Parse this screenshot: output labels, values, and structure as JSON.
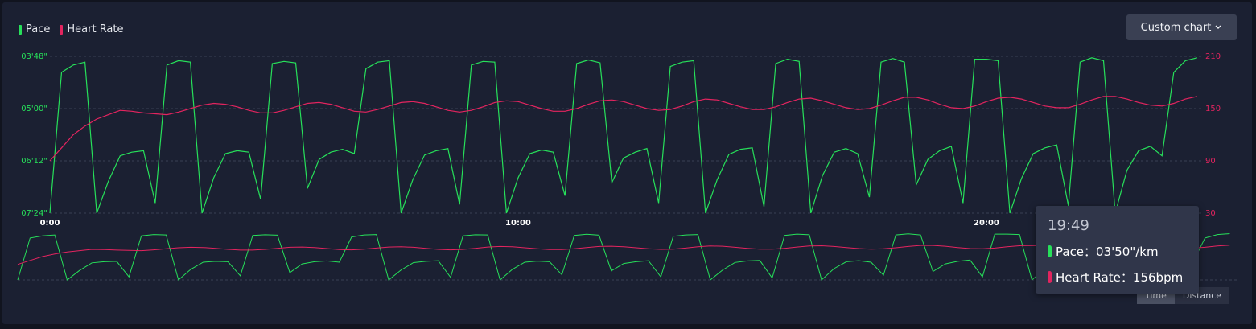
{
  "chart_data": {
    "type": "line",
    "x": [
      0,
      0.25,
      0.5,
      0.75,
      1,
      1.25,
      1.5,
      1.75,
      2,
      2.25,
      2.5,
      2.75,
      3,
      3.25,
      3.5,
      3.75,
      4,
      4.25,
      4.5,
      4.75,
      5,
      5.25,
      5.5,
      5.75,
      6,
      6.25,
      6.5,
      6.75,
      7,
      7.25,
      7.5,
      7.75,
      8,
      8.25,
      8.5,
      8.75,
      9,
      9.25,
      9.5,
      9.75,
      10,
      10.25,
      10.5,
      10.75,
      11,
      11.25,
      11.5,
      11.75,
      12,
      12.25,
      12.5,
      12.75,
      13,
      13.25,
      13.5,
      13.75,
      14,
      14.25,
      14.5,
      14.75,
      15,
      15.25,
      15.5,
      15.75,
      16,
      16.25,
      16.5,
      16.75,
      17,
      17.25,
      17.5,
      17.75,
      18,
      18.25,
      18.5,
      18.75,
      19,
      19.25,
      19.5,
      19.75,
      20,
      20.25,
      20.5,
      20.75,
      21,
      21.25,
      21.5,
      21.75,
      22,
      22.25,
      22.5,
      22.75,
      23,
      23.25,
      23.5,
      23.75,
      24,
      24.25,
      24.5
    ],
    "xlim": [
      0,
      24.64
    ],
    "xticks": [
      {
        "value": 0,
        "label": "0:00"
      },
      {
        "value": 10,
        "label": "10:00"
      },
      {
        "value": 20,
        "label": "20:00"
      }
    ],
    "ylim": [
      444,
      228
    ],
    "yticks": [
      {
        "value": 228,
        "label": "03'48\""
      },
      {
        "value": 300,
        "label": "05'00\""
      },
      {
        "value": 372,
        "label": "06'12\""
      },
      {
        "value": 444,
        "label": "07'24\""
      }
    ],
    "y2lim": [
      30,
      210
    ],
    "y2ticks": [
      30,
      90,
      150,
      210
    ],
    "grid": true,
    "series": [
      {
        "name": "Pace",
        "color": "#27e05a",
        "values": [
          444,
          250,
          240,
          236,
          444,
          400,
          365,
          360,
          358,
          430,
          240,
          234,
          236,
          444,
          395,
          362,
          358,
          360,
          425,
          238,
          235,
          237,
          410,
          370,
          360,
          356,
          362,
          245,
          236,
          234,
          444,
          398,
          364,
          358,
          355,
          432,
          240,
          235,
          236,
          444,
          395,
          362,
          357,
          360,
          420,
          238,
          233,
          237,
          402,
          368,
          360,
          355,
          430,
          242,
          236,
          234,
          444,
          398,
          363,
          356,
          354,
          435,
          238,
          232,
          235,
          444,
          392,
          360,
          355,
          362,
          422,
          236,
          231,
          236,
          405,
          370,
          358,
          352,
          430,
          232,
          232,
          234,
          444,
          396,
          362,
          354,
          350,
          434,
          236,
          230,
          234,
          444,
          385,
          358,
          352,
          365,
          250,
          234,
          230
        ]
      },
      {
        "name": "Heart Rate",
        "color": "#e3245f",
        "axis": "y2",
        "values": [
          90,
          105,
          120,
          130,
          138,
          143,
          148,
          147,
          145,
          144,
          143,
          146,
          150,
          154,
          156,
          155,
          152,
          148,
          145,
          145,
          148,
          152,
          156,
          157,
          155,
          151,
          147,
          146,
          149,
          153,
          157,
          158,
          156,
          152,
          148,
          146,
          148,
          152,
          157,
          159,
          158,
          154,
          150,
          147,
          147,
          150,
          155,
          159,
          160,
          158,
          154,
          150,
          148,
          149,
          153,
          158,
          161,
          160,
          156,
          152,
          149,
          149,
          152,
          157,
          161,
          162,
          159,
          155,
          151,
          149,
          150,
          154,
          159,
          163,
          163,
          160,
          155,
          151,
          150,
          153,
          158,
          162,
          163,
          161,
          157,
          153,
          151,
          151,
          155,
          160,
          164,
          164,
          161,
          157,
          154,
          153,
          156,
          161,
          164
        ]
      }
    ]
  },
  "controls": {
    "custom_chart": "Custom chart",
    "axis_modes": [
      "Time",
      "Distance"
    ]
  },
  "tooltip": {
    "time": "19:49",
    "lines": [
      "Pace：03'50\"/km",
      "Heart Rate：156bpm"
    ]
  }
}
